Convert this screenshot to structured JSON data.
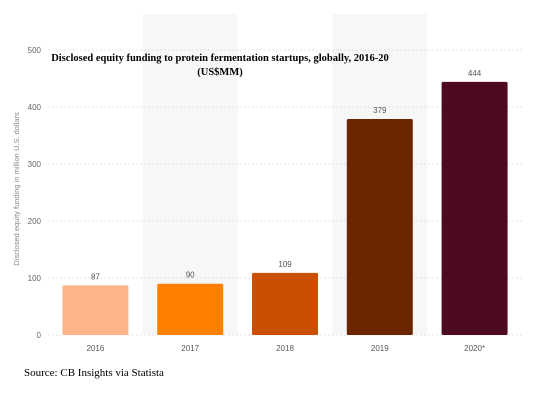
{
  "chart_data": {
    "type": "bar",
    "title_line1": "Disclosed equity funding to protein fermentation startups, globally, 2016-20",
    "title_line2": "(US$MM)",
    "ylabel": "Disclosed equity funding in million U.S. dollars",
    "xlabel": "",
    "categories": [
      "2016",
      "2017",
      "2018",
      "2019",
      "2020*"
    ],
    "values": [
      87,
      90,
      109,
      379,
      444
    ],
    "value_labels": [
      "87",
      "90",
      "109",
      "379",
      "444"
    ],
    "colors": [
      "#FFB38A",
      "#FF8000",
      "#C85000",
      "#6B2600",
      "#4E0A22"
    ],
    "ylim": [
      0,
      500
    ],
    "yticks": [
      "0",
      "100",
      "200",
      "300",
      "400",
      "500"
    ],
    "grid": true,
    "legend": "none"
  },
  "source": "Source: CB Insights via Statista"
}
